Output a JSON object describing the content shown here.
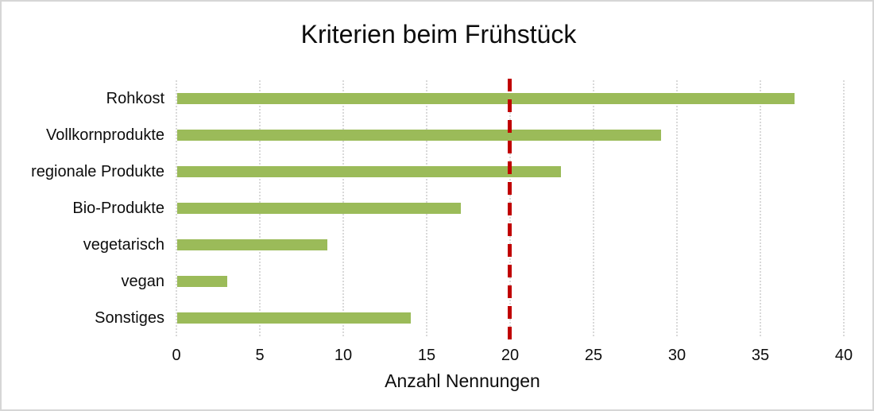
{
  "chart_data": {
    "type": "bar",
    "orientation": "horizontal",
    "title": "Kriterien beim Frühstück",
    "xlabel": "Anzahl Nennungen",
    "categories": [
      "Rohkost",
      "Vollkornprodukte",
      "regionale Produkte",
      "Bio-Produkte",
      "vegetarisch",
      "vegan",
      "Sonstiges"
    ],
    "values": [
      37,
      29,
      23,
      17,
      9,
      3,
      14
    ],
    "xlim": [
      0,
      40
    ],
    "xticks": [
      0,
      5,
      10,
      15,
      20,
      25,
      30,
      35,
      40
    ],
    "grid": "vertical-dotted",
    "legend": "none",
    "reference_line": {
      "x": 20,
      "style": "dashed",
      "color": "#C00000"
    },
    "colors": {
      "bar": "#9BBB59",
      "gridline": "#D9D9D9",
      "reference": "#C00000",
      "text": "#0D0D0D",
      "background": "#FFFFFF",
      "frame_border": "#D6D6D6"
    }
  }
}
